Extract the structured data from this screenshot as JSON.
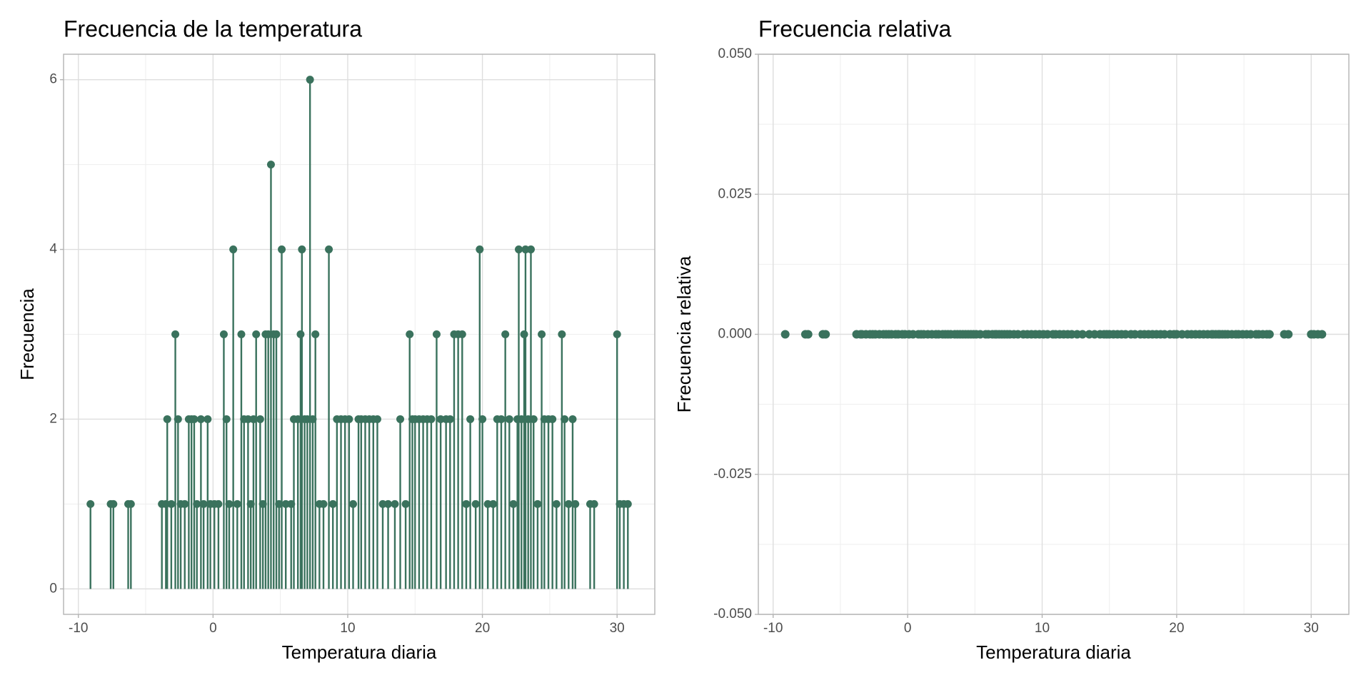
{
  "chart_data": [
    {
      "type": "lollipop",
      "title": "Frecuencia de la temperatura",
      "x_label": "Temperatura diaria",
      "y_label": "Frecuencia",
      "color": "#3a725d",
      "grid": true,
      "x": [
        -9.1,
        -7.6,
        -7.4,
        -6.3,
        -6.1,
        -3.8,
        -3.5,
        -3.4,
        -3.1,
        -2.8,
        -2.6,
        -2.4,
        -2.1,
        -1.8,
        -1.6,
        -1.4,
        -1.2,
        -0.9,
        -0.7,
        -0.4,
        -0.2,
        0.1,
        0.4,
        0.8,
        1.0,
        1.2,
        1.5,
        1.8,
        2.1,
        2.3,
        2.6,
        2.8,
        3.0,
        3.2,
        3.5,
        3.7,
        3.9,
        4.1,
        4.3,
        4.5,
        4.7,
        4.9,
        5.1,
        5.4,
        5.8,
        6.0,
        6.3,
        6.5,
        6.6,
        6.8,
        7.0,
        7.2,
        7.4,
        7.6,
        7.9,
        8.2,
        8.6,
        8.9,
        9.2,
        9.5,
        9.8,
        10.1,
        10.4,
        10.8,
        11.0,
        11.3,
        11.6,
        11.9,
        12.2,
        12.6,
        13.0,
        13.5,
        13.9,
        14.3,
        14.6,
        14.8,
        15.0,
        15.3,
        15.6,
        15.9,
        16.2,
        16.6,
        16.9,
        17.3,
        17.6,
        17.9,
        18.2,
        18.5,
        18.8,
        19.1,
        19.5,
        19.8,
        20.0,
        20.4,
        20.8,
        21.1,
        21.4,
        21.7,
        22.0,
        22.3,
        22.6,
        22.7,
        22.9,
        23.1,
        23.2,
        23.4,
        23.6,
        23.8,
        24.1,
        24.4,
        24.6,
        24.9,
        25.2,
        25.5,
        25.9,
        26.1,
        26.4,
        26.7,
        26.9,
        28.0,
        28.3,
        30.0,
        30.2,
        30.5,
        30.8
      ],
      "values": [
        1,
        1,
        1,
        1,
        1,
        1,
        1,
        2,
        1,
        3,
        2,
        1,
        1,
        2,
        2,
        2,
        1,
        2,
        1,
        2,
        1,
        1,
        1,
        3,
        2,
        1,
        4,
        1,
        3,
        2,
        2,
        1,
        2,
        3,
        2,
        1,
        3,
        3,
        5,
        3,
        3,
        1,
        4,
        1,
        1,
        2,
        2,
        3,
        4,
        2,
        2,
        6,
        2,
        3,
        1,
        1,
        4,
        1,
        2,
        2,
        2,
        2,
        1,
        2,
        2,
        2,
        2,
        2,
        2,
        1,
        1,
        1,
        2,
        1,
        3,
        2,
        2,
        2,
        2,
        2,
        2,
        3,
        2,
        2,
        2,
        3,
        3,
        3,
        1,
        2,
        1,
        4,
        2,
        1,
        1,
        2,
        2,
        3,
        2,
        1,
        2,
        4,
        2,
        3,
        4,
        2,
        4,
        2,
        1,
        3,
        2,
        2,
        2,
        1,
        3,
        2,
        1,
        2,
        1,
        1,
        1,
        3,
        1,
        1,
        1
      ],
      "xlim": [
        -11.1,
        32.8
      ],
      "xticks": [
        -10,
        0,
        10,
        20,
        30
      ],
      "ylim": [
        -0.3,
        6.3
      ],
      "yticks": [
        0,
        2,
        4,
        6
      ]
    },
    {
      "type": "scatter",
      "title": "Frecuencia relativa",
      "x_label": "Temperatura diaria",
      "y_label": "Frecuencia relativa",
      "color": "#3a725d",
      "grid": true,
      "x": [
        -9.1,
        -7.6,
        -7.4,
        -6.3,
        -6.1,
        -3.8,
        -3.5,
        -3.4,
        -3.1,
        -2.8,
        -2.6,
        -2.4,
        -2.1,
        -1.8,
        -1.6,
        -1.4,
        -1.2,
        -0.9,
        -0.7,
        -0.4,
        -0.2,
        0.1,
        0.4,
        0.8,
        1.0,
        1.2,
        1.5,
        1.8,
        2.1,
        2.3,
        2.6,
        2.8,
        3.0,
        3.2,
        3.5,
        3.7,
        3.9,
        4.1,
        4.3,
        4.5,
        4.7,
        4.9,
        5.1,
        5.4,
        5.8,
        6.0,
        6.3,
        6.5,
        6.6,
        6.8,
        7.0,
        7.2,
        7.4,
        7.6,
        7.9,
        8.2,
        8.6,
        8.9,
        9.2,
        9.5,
        9.8,
        10.1,
        10.4,
        10.8,
        11.0,
        11.3,
        11.6,
        11.9,
        12.2,
        12.6,
        13.0,
        13.5,
        13.9,
        14.3,
        14.6,
        14.8,
        15.0,
        15.3,
        15.6,
        15.9,
        16.2,
        16.6,
        16.9,
        17.3,
        17.6,
        17.9,
        18.2,
        18.5,
        18.8,
        19.1,
        19.5,
        19.8,
        20.0,
        20.4,
        20.8,
        21.1,
        21.4,
        21.7,
        22.0,
        22.3,
        22.6,
        22.7,
        22.9,
        23.1,
        23.2,
        23.4,
        23.6,
        23.8,
        24.1,
        24.4,
        24.6,
        24.9,
        25.2,
        25.5,
        25.9,
        26.1,
        26.4,
        26.7,
        26.9,
        28.0,
        28.3,
        30.0,
        30.2,
        30.5,
        30.8
      ],
      "values": [
        0,
        0,
        0,
        0,
        0,
        0,
        0,
        0,
        0,
        0,
        0,
        0,
        0,
        0,
        0,
        0,
        0,
        0,
        0,
        0,
        0,
        0,
        0,
        0,
        0,
        0,
        0,
        0,
        0,
        0,
        0,
        0,
        0,
        0,
        0,
        0,
        0,
        0,
        0,
        0,
        0,
        0,
        0,
        0,
        0,
        0,
        0,
        0,
        0,
        0,
        0,
        0,
        0,
        0,
        0,
        0,
        0,
        0,
        0,
        0,
        0,
        0,
        0,
        0,
        0,
        0,
        0,
        0,
        0,
        0,
        0,
        0,
        0,
        0,
        0,
        0,
        0,
        0,
        0,
        0,
        0,
        0,
        0,
        0,
        0,
        0,
        0,
        0,
        0,
        0,
        0,
        0,
        0,
        0,
        0,
        0,
        0,
        0,
        0,
        0,
        0,
        0,
        0,
        0,
        0,
        0,
        0,
        0,
        0,
        0,
        0,
        0,
        0,
        0,
        0,
        0,
        0,
        0,
        0,
        0,
        0,
        0,
        0,
        0,
        0
      ],
      "xlim": [
        -11.1,
        32.8
      ],
      "xticks": [
        -10,
        0,
        10,
        20,
        30
      ],
      "ylim": [
        -0.05,
        0.05
      ],
      "yticks": [
        {
          "value": -0.05,
          "label": "-0.050"
        },
        -0.025,
        {
          "value": 0,
          "label": "0.000"
        },
        0.025,
        {
          "value": 0.05,
          "label": "0.050"
        }
      ]
    }
  ]
}
